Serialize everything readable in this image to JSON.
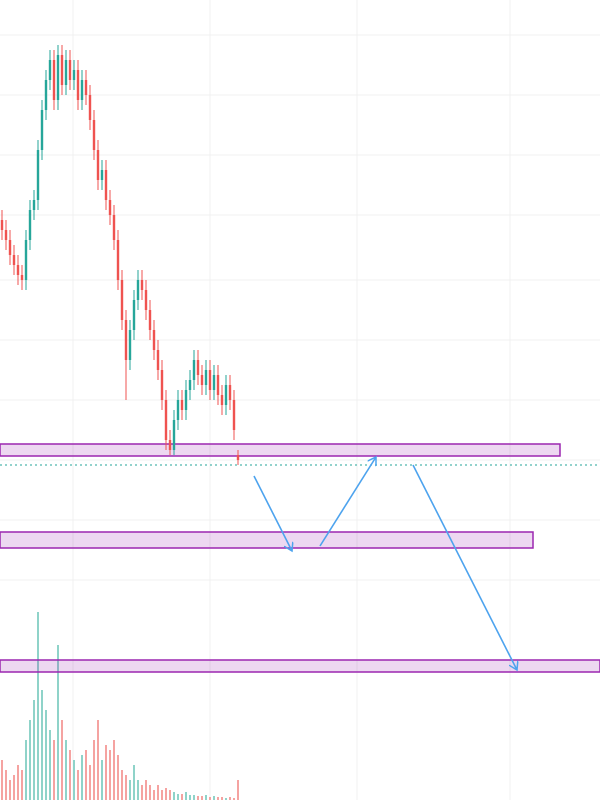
{
  "chart_data": {
    "type": "candlestick",
    "xlim": [
      -0.5,
      149.5
    ],
    "xticks": [
      17.75,
      52,
      88.75,
      127
    ],
    "ylim": [
      0,
      800
    ],
    "yticks": [
      765,
      705,
      645,
      585,
      520,
      460,
      400,
      340,
      280,
      220
    ],
    "grid": true,
    "up_color": "#26a69a",
    "down_color": "#ef5350",
    "open": [
      580,
      570,
      560,
      545,
      535,
      525,
      520,
      560,
      590,
      600,
      650,
      690,
      720,
      740,
      700,
      745,
      715,
      740,
      720,
      730,
      700,
      720,
      705,
      680,
      650,
      620,
      630,
      600,
      585,
      560,
      520,
      480,
      440,
      470,
      500,
      520,
      510,
      490,
      470,
      450,
      430,
      400,
      360,
      350,
      380,
      400,
      390,
      410,
      420,
      440,
      425,
      415,
      430,
      410,
      425,
      405,
      395,
      415,
      400,
      345
    ],
    "high": [
      590,
      580,
      570,
      555,
      545,
      535,
      570,
      600,
      610,
      660,
      700,
      730,
      750,
      750,
      755,
      755,
      750,
      750,
      740,
      740,
      730,
      730,
      715,
      690,
      660,
      640,
      640,
      610,
      595,
      570,
      530,
      490,
      480,
      510,
      530,
      530,
      520,
      500,
      480,
      460,
      440,
      410,
      370,
      390,
      410,
      410,
      420,
      430,
      450,
      450,
      435,
      440,
      440,
      435,
      435,
      415,
      425,
      425,
      410,
      350
    ],
    "low": [
      560,
      550,
      535,
      525,
      515,
      510,
      510,
      550,
      580,
      590,
      640,
      680,
      710,
      690,
      690,
      705,
      705,
      710,
      710,
      690,
      690,
      695,
      670,
      640,
      610,
      610,
      590,
      575,
      550,
      510,
      470,
      400,
      430,
      460,
      490,
      500,
      480,
      460,
      440,
      420,
      390,
      350,
      345,
      345,
      370,
      380,
      380,
      400,
      410,
      415,
      405,
      405,
      400,
      400,
      395,
      385,
      385,
      390,
      360,
      335
    ],
    "close": [
      570,
      560,
      545,
      535,
      525,
      520,
      560,
      590,
      600,
      650,
      690,
      720,
      740,
      700,
      745,
      715,
      740,
      720,
      730,
      700,
      720,
      705,
      680,
      650,
      620,
      630,
      600,
      585,
      560,
      520,
      480,
      440,
      470,
      500,
      520,
      510,
      490,
      470,
      450,
      430,
      400,
      360,
      350,
      380,
      400,
      390,
      410,
      420,
      440,
      425,
      415,
      430,
      410,
      425,
      405,
      395,
      415,
      400,
      370,
      340
    ],
    "volume": {
      "ylim": [
        0,
        200
      ],
      "color_up": "#8fd3c9",
      "color_down": "#f5a3a1",
      "values": [
        40,
        30,
        20,
        25,
        35,
        30,
        60,
        80,
        100,
        188,
        110,
        90,
        70,
        60,
        155,
        80,
        60,
        50,
        40,
        30,
        45,
        50,
        35,
        60,
        80,
        40,
        55,
        50,
        60,
        45,
        30,
        25,
        20,
        35,
        20,
        15,
        20,
        15,
        10,
        15,
        10,
        12,
        10,
        8,
        6,
        6,
        8,
        5,
        5,
        4,
        4,
        5,
        3,
        4,
        3,
        3,
        2,
        3,
        2,
        20
      ]
    },
    "zones": [
      {
        "top": 356,
        "bottom": 344
      },
      {
        "top": 268,
        "bottom": 252
      },
      {
        "top": 140,
        "bottom": 128
      }
    ],
    "zone_color": "#9c27b0",
    "level_line": 335
  }
}
